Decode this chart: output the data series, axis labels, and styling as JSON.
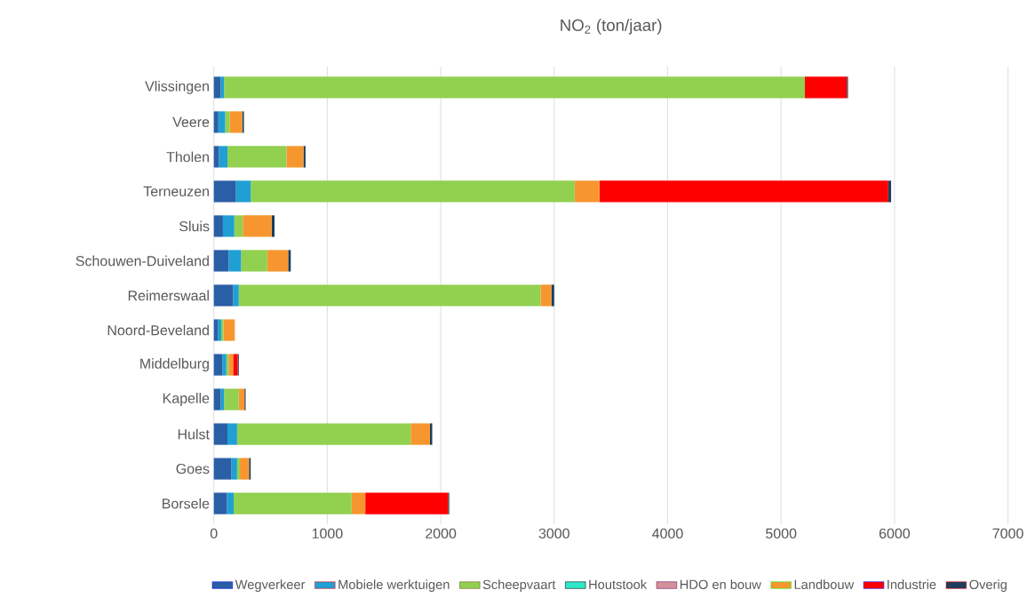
{
  "chart_data": {
    "type": "bar",
    "orientation": "horizontal",
    "stacked": true,
    "title": "NO$_{2}$ (ton/jaar)",
    "categories": [
      "Vlissingen",
      "Veere",
      "Tholen",
      "Terneuzen",
      "Sluis",
      "Schouwen-Duiveland",
      "Reimerswaal",
      "Noord-Beveland",
      "Middelburg",
      "Kapelle",
      "Hulst",
      "Goes",
      "Borsele"
    ],
    "series": [
      {
        "name": "Wegverkeer",
        "color": "#2a5fa5",
        "values": [
          60,
          40,
          45,
          195,
          80,
          130,
          170,
          35,
          75,
          60,
          120,
          155,
          115
        ]
      },
      {
        "name": "Mobiele werktuigen",
        "color": "#1f9fd4",
        "values": [
          30,
          60,
          75,
          130,
          100,
          110,
          50,
          30,
          35,
          30,
          85,
          50,
          60
        ]
      },
      {
        "name": "Scheepvaart",
        "color": "#92d050",
        "values": [
          5120,
          40,
          520,
          2855,
          75,
          230,
          2660,
          20,
          20,
          130,
          1530,
          25,
          1040
        ]
      },
      {
        "name": "Houtstook",
        "color": "#2ee8c8",
        "values": [
          0,
          0,
          0,
          0,
          0,
          0,
          0,
          0,
          0,
          0,
          0,
          0,
          0
        ]
      },
      {
        "name": "HDO en bouw",
        "color": "#d4919a",
        "values": [
          0,
          0,
          0,
          0,
          0,
          0,
          0,
          0,
          0,
          0,
          0,
          0,
          0
        ]
      },
      {
        "name": "Landbouw",
        "color": "#f7962f",
        "values": [
          0,
          110,
          150,
          220,
          255,
          185,
          95,
          100,
          40,
          50,
          170,
          80,
          120
        ]
      },
      {
        "name": "Industrie",
        "color": "#ff0000",
        "values": [
          370,
          0,
          0,
          2545,
          0,
          0,
          0,
          0,
          40,
          0,
          0,
          0,
          730
        ]
      },
      {
        "name": "Overig",
        "color": "#1b3f5a",
        "values": [
          10,
          15,
          18,
          25,
          25,
          23,
          25,
          0,
          10,
          10,
          20,
          15,
          10
        ]
      }
    ],
    "xlim": [
      0,
      7000
    ],
    "xticks": [
      0,
      1000,
      2000,
      3000,
      4000,
      5000,
      6000,
      7000
    ],
    "grid": "x",
    "legend": "bottom"
  }
}
